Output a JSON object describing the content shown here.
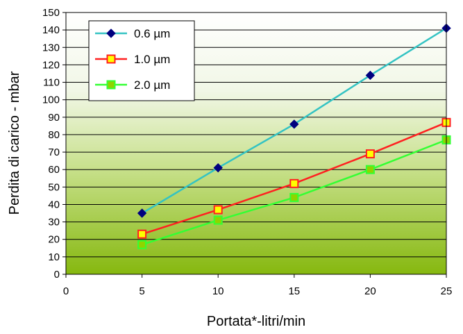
{
  "chart_data": {
    "type": "line",
    "xlabel": "Portata*-litri/min",
    "ylabel": "Perdita di carico - mbar",
    "xlim": [
      0,
      25
    ],
    "ylim": [
      0,
      150
    ],
    "x_ticks": [
      0,
      5,
      10,
      15,
      20,
      25
    ],
    "y_ticks": [
      0,
      10,
      20,
      30,
      40,
      50,
      60,
      70,
      80,
      90,
      100,
      110,
      120,
      130,
      140,
      150
    ],
    "grid": "horizontal",
    "legend_position": "top-left",
    "background": "vertical gradient from white (top) to olive green (bottom)",
    "x": [
      5,
      10,
      15,
      20,
      25
    ],
    "series": [
      {
        "name": "0.6 µm",
        "values": [
          35,
          61,
          86,
          114,
          141
        ],
        "line_color": "#33c3c3",
        "marker": "diamond",
        "marker_fill": "#00007f",
        "marker_stroke": "#00007f"
      },
      {
        "name": "1.0 µm",
        "values": [
          23,
          37,
          52,
          69,
          87
        ],
        "line_color": "#ff2020",
        "marker": "square",
        "marker_fill": "#ffff00",
        "marker_stroke": "#ff2020"
      },
      {
        "name": "2.0 µm",
        "values": [
          17,
          31,
          44,
          60,
          77
        ],
        "line_color": "#33ff33",
        "marker": "square",
        "marker_fill": "#8fd400",
        "marker_stroke": "#33ff33"
      }
    ]
  }
}
